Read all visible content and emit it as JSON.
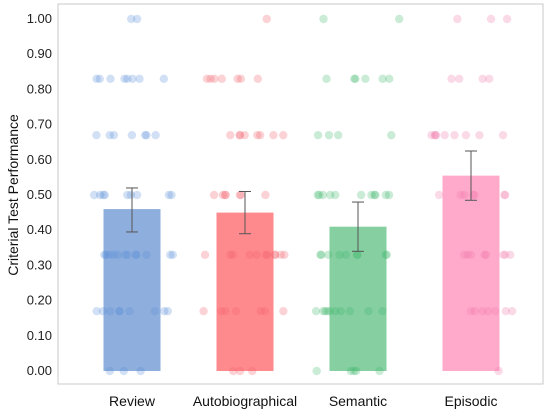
{
  "chart_data": {
    "type": "bar",
    "ylabel": "Criterial Test Performance",
    "xlabel": "",
    "ylim": [
      0,
      1.0
    ],
    "yticks": [
      "0.00",
      "0.10",
      "0.20",
      "0.30",
      "0.40",
      "0.50",
      "0.60",
      "0.70",
      "0.80",
      "0.90",
      "1.00"
    ],
    "categories": [
      "Review",
      "Autobiographical",
      "Semantic",
      "Episodic"
    ],
    "values": [
      0.46,
      0.45,
      0.41,
      0.555
    ],
    "error_low": [
      0.395,
      0.39,
      0.34,
      0.485
    ],
    "error_high": [
      0.52,
      0.51,
      0.48,
      0.625
    ],
    "colors": [
      "#8eaedd",
      "#ff8a8e",
      "#86cfa1",
      "#ffaacb"
    ],
    "point_colors": [
      "#5b8fd6",
      "#f0606c",
      "#3fb86a",
      "#f07aac"
    ],
    "grid": false,
    "points": [
      {
        "category": "Review",
        "y": [
          1.0,
          1.0,
          0.83,
          0.83,
          0.83,
          0.83,
          0.83,
          0.83,
          0.83,
          0.83,
          0.67,
          0.67,
          0.67,
          0.67,
          0.67,
          0.67,
          0.67,
          0.5,
          0.5,
          0.5,
          0.5,
          0.5,
          0.5,
          0.5,
          0.5,
          0.5,
          0.33,
          0.33,
          0.33,
          0.33,
          0.33,
          0.33,
          0.33,
          0.33,
          0.33,
          0.33,
          0.33,
          0.33,
          0.17,
          0.17,
          0.17,
          0.17,
          0.17,
          0.17,
          0.17,
          0.17,
          0.17,
          0.0,
          0.0,
          0.0
        ]
      },
      {
        "category": "Autobiographical",
        "y": [
          1.0,
          0.83,
          0.83,
          0.83,
          0.83,
          0.83,
          0.83,
          0.83,
          0.67,
          0.67,
          0.67,
          0.67,
          0.67,
          0.67,
          0.67,
          0.67,
          0.5,
          0.5,
          0.5,
          0.5,
          0.5,
          0.5,
          0.5,
          0.33,
          0.33,
          0.33,
          0.33,
          0.33,
          0.33,
          0.33,
          0.33,
          0.33,
          0.33,
          0.33,
          0.17,
          0.17,
          0.17,
          0.17,
          0.17,
          0.17,
          0.17,
          0.0,
          0.0,
          0.0
        ]
      },
      {
        "category": "Semantic",
        "y": [
          1.0,
          1.0,
          0.83,
          0.83,
          0.83,
          0.83,
          0.83,
          0.83,
          0.67,
          0.67,
          0.67,
          0.67,
          0.5,
          0.5,
          0.5,
          0.5,
          0.5,
          0.5,
          0.5,
          0.5,
          0.5,
          0.5,
          0.5,
          0.33,
          0.33,
          0.33,
          0.33,
          0.33,
          0.33,
          0.33,
          0.33,
          0.33,
          0.17,
          0.17,
          0.17,
          0.17,
          0.17,
          0.17,
          0.17,
          0.17,
          0.17,
          0.17,
          0.0,
          0.0,
          0.0,
          0.0,
          0.0
        ]
      },
      {
        "category": "Episodic",
        "y": [
          1.0,
          1.0,
          1.0,
          0.83,
          0.83,
          0.83,
          0.83,
          0.67,
          0.67,
          0.67,
          0.67,
          0.67,
          0.67,
          0.67,
          0.67,
          0.67,
          0.5,
          0.5,
          0.5,
          0.5,
          0.5,
          0.5,
          0.5,
          0.33,
          0.33,
          0.33,
          0.33,
          0.33,
          0.33,
          0.33,
          0.33,
          0.17,
          0.17,
          0.17,
          0.17,
          0.17,
          0.17,
          0.17,
          0.0
        ]
      }
    ]
  }
}
